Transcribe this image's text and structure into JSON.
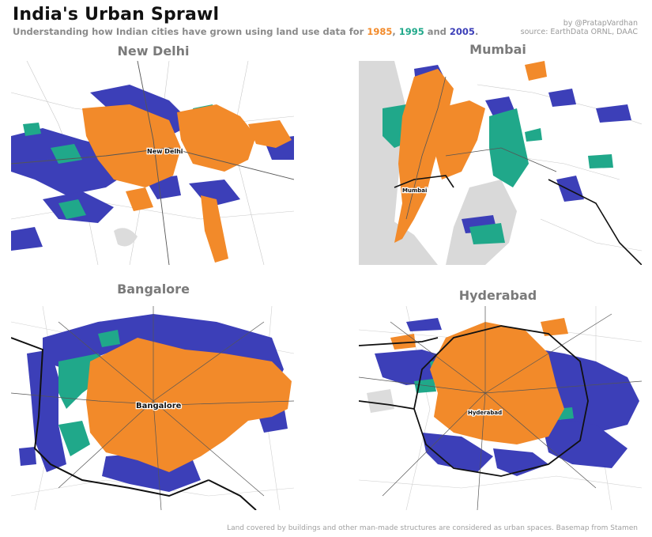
{
  "header": {
    "title": "India's Urban Sprawl",
    "subtitle_prefix": "Understanding how Indian cities have grown using land use data for ",
    "year1": "1985",
    "sep1": ", ",
    "year2": "1995",
    "sep2": " and ",
    "year3": "2005",
    "subtitle_suffix": ".",
    "byline": "by @PratapVardhan",
    "source": "source: EarthData ORNL, DAAC"
  },
  "colors": {
    "y1985": "#f28a2a",
    "y1995": "#20a88a",
    "y2005": "#3c3fb8",
    "water": "#d9d9d9",
    "road": "#333333"
  },
  "maps": [
    {
      "title": "New Delhi",
      "city_label": "New Delhi"
    },
    {
      "title": "Mumbai",
      "city_label": "Mumbai"
    },
    {
      "title": "Bangalore",
      "city_label": "Bangalore"
    },
    {
      "title": "Hyderabad",
      "city_label": "Hyderabad"
    }
  ],
  "footer": "Land covered by buildings and other man-made structures are considered as urban spaces. Basemap from Stamen"
}
